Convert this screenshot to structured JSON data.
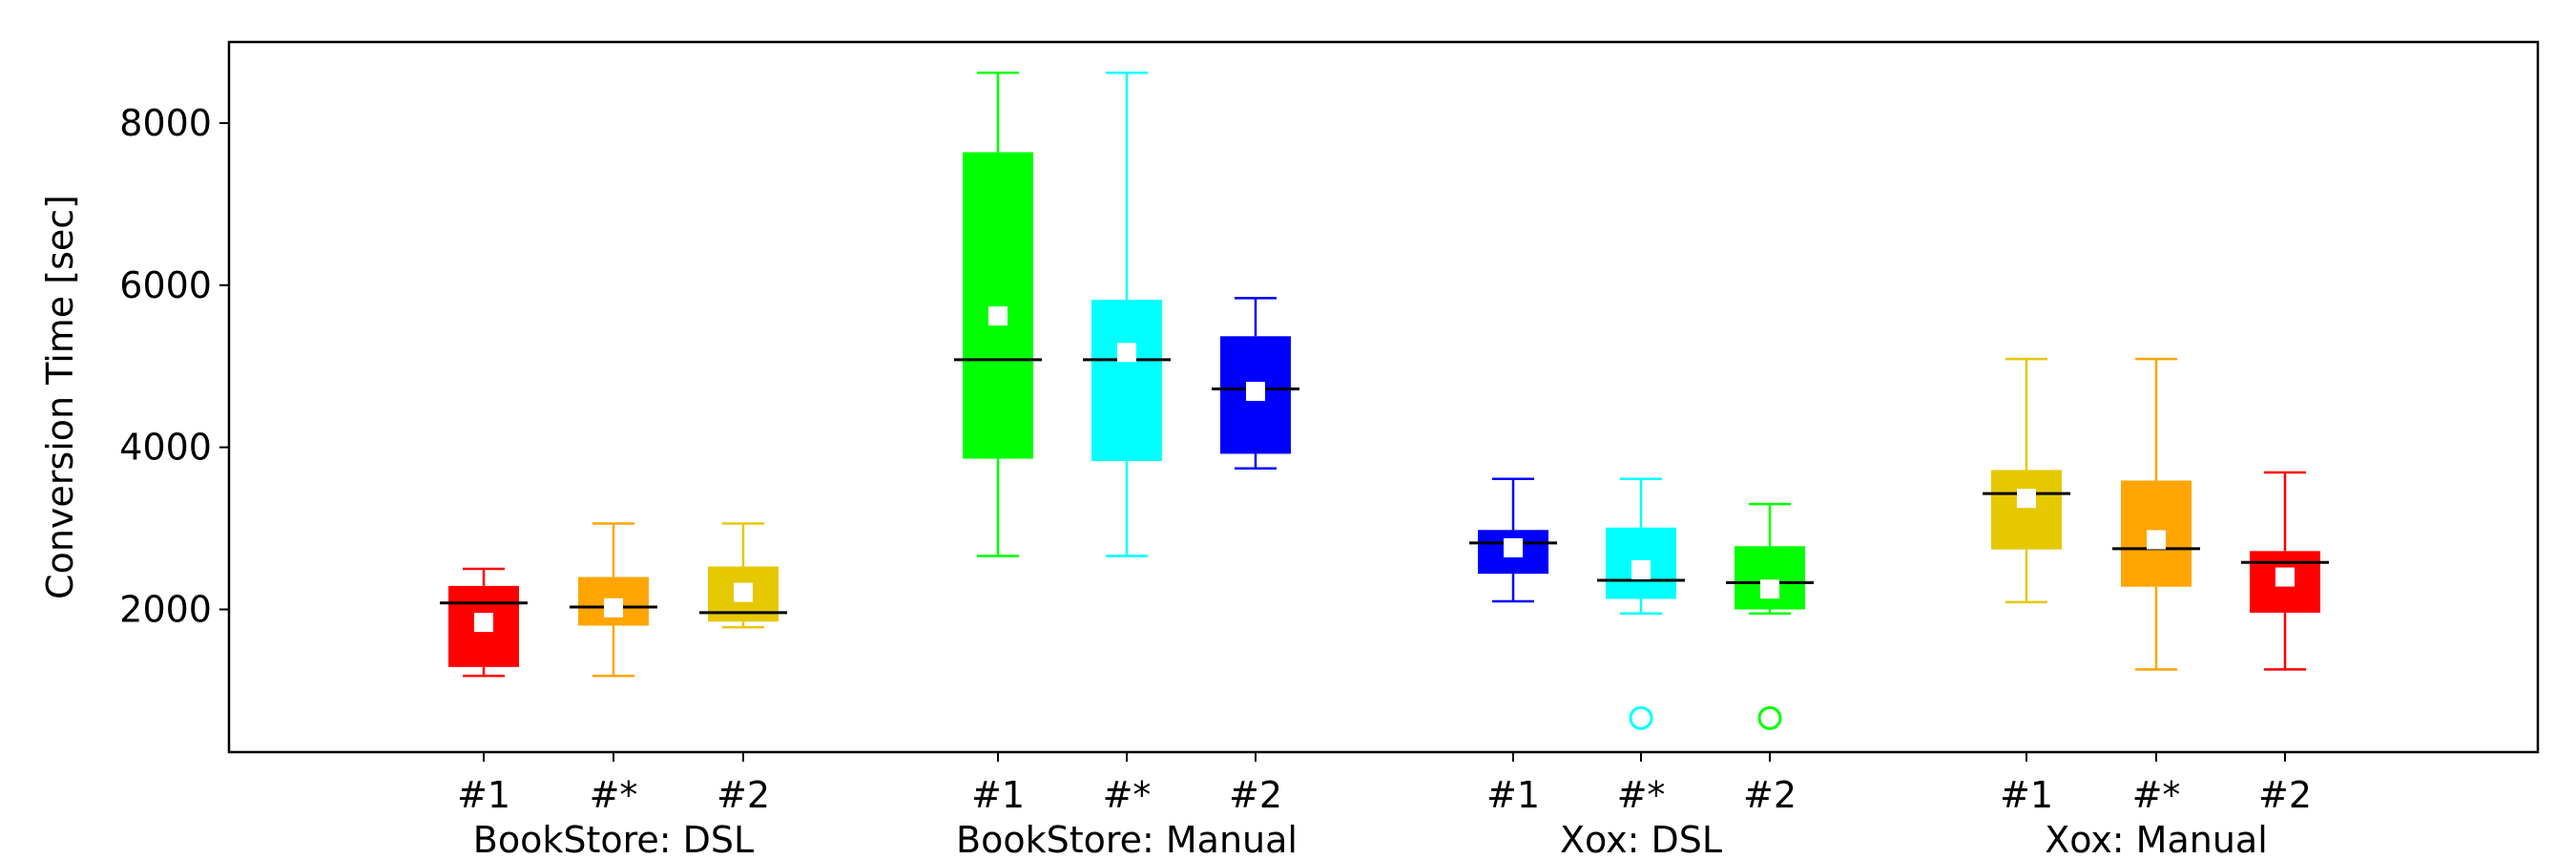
{
  "chart_data": {
    "type": "box",
    "ylabel": "Conversion Time [sec]",
    "xlabel": "",
    "yticks": [
      2000,
      4000,
      6000,
      8000
    ],
    "ylim": [
      240,
      9000
    ],
    "groups": [
      {
        "label": "BookStore: DSL",
        "boxes": [
          {
            "label": "#1",
            "color": "#ff0000",
            "whisker_low": 1180,
            "q1": 1290,
            "median": 2080,
            "q3": 2290,
            "whisker_high": 2500,
            "mean": 1840,
            "outliers": []
          },
          {
            "label": "#*",
            "color": "#ffa500",
            "whisker_low": 1180,
            "q1": 1800,
            "median": 2030,
            "q3": 2400,
            "whisker_high": 3060,
            "mean": 2020,
            "outliers": []
          },
          {
            "label": "#2",
            "color": "#e6c800",
            "whisker_low": 1780,
            "q1": 1850,
            "median": 1960,
            "q3": 2530,
            "whisker_high": 3060,
            "mean": 2210,
            "outliers": []
          }
        ]
      },
      {
        "label": "BookStore: Manual",
        "boxes": [
          {
            "label": "#1",
            "color": "#00ff00",
            "whisker_low": 2660,
            "q1": 3860,
            "median": 5080,
            "q3": 7640,
            "whisker_high": 8620,
            "mean": 5620,
            "outliers": []
          },
          {
            "label": "#*",
            "color": "#00ffff",
            "whisker_low": 2660,
            "q1": 3830,
            "median": 5080,
            "q3": 5820,
            "whisker_high": 8620,
            "mean": 5170,
            "outliers": []
          },
          {
            "label": "#2",
            "color": "#0000ff",
            "whisker_low": 3740,
            "q1": 3920,
            "median": 4720,
            "q3": 5370,
            "whisker_high": 5840,
            "mean": 4690,
            "outliers": []
          }
        ]
      },
      {
        "label": "Xox: DSL",
        "boxes": [
          {
            "label": "#1",
            "color": "#0000ff",
            "whisker_low": 2100,
            "q1": 2440,
            "median": 2820,
            "q3": 2980,
            "whisker_high": 3610,
            "mean": 2760,
            "outliers": []
          },
          {
            "label": "#*",
            "color": "#00ffff",
            "whisker_low": 1950,
            "q1": 2130,
            "median": 2360,
            "q3": 3010,
            "whisker_high": 3610,
            "mean": 2490,
            "outliers": [
              660
            ]
          },
          {
            "label": "#2",
            "color": "#00ff00",
            "whisker_low": 1950,
            "q1": 2000,
            "median": 2330,
            "q3": 2780,
            "whisker_high": 3300,
            "mean": 2250,
            "outliers": [
              660
            ]
          }
        ]
      },
      {
        "label": "Xox: Manual",
        "boxes": [
          {
            "label": "#1",
            "color": "#e6c800",
            "whisker_low": 2090,
            "q1": 2740,
            "median": 3430,
            "q3": 3720,
            "whisker_high": 5090,
            "mean": 3370,
            "outliers": []
          },
          {
            "label": "#*",
            "color": "#ffa500",
            "whisker_low": 1260,
            "q1": 2280,
            "median": 2750,
            "q3": 3590,
            "whisker_high": 5090,
            "mean": 2860,
            "outliers": []
          },
          {
            "label": "#2",
            "color": "#ff0000",
            "whisker_low": 1260,
            "q1": 1960,
            "median": 2580,
            "q3": 2720,
            "whisker_high": 3690,
            "mean": 2400,
            "outliers": []
          }
        ]
      }
    ]
  }
}
